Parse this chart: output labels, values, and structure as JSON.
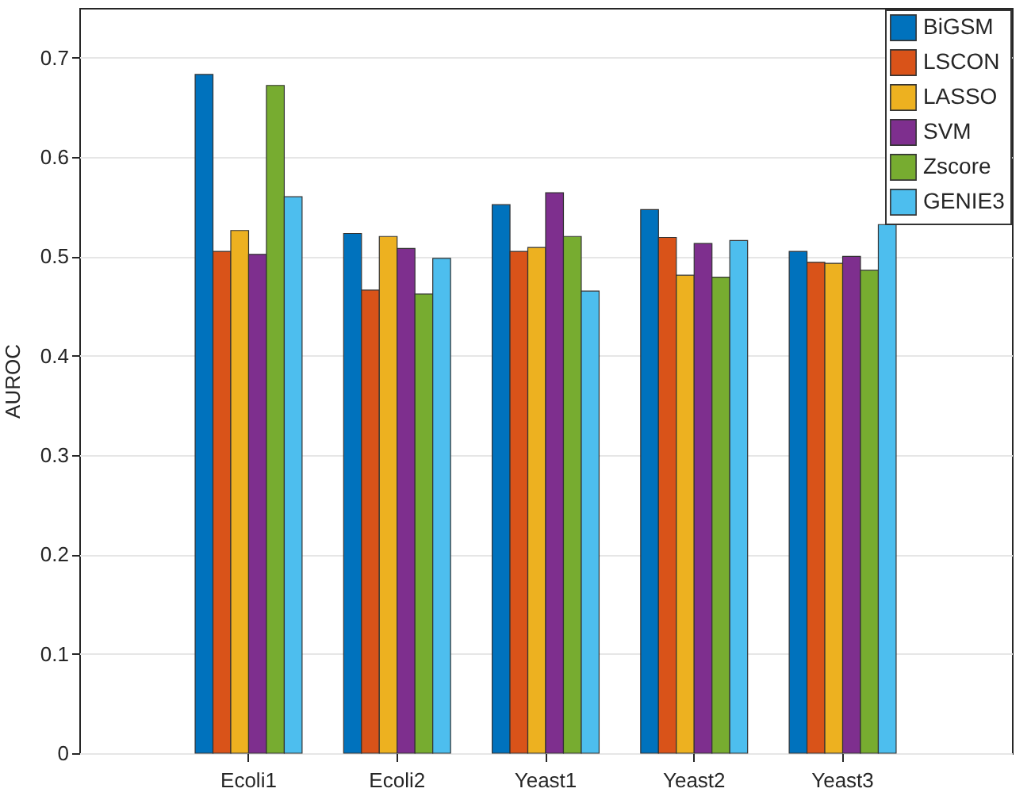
{
  "chart_data": {
    "type": "bar",
    "ylabel": "AUROC",
    "categories": [
      "Ecoli1",
      "Ecoli2",
      "Yeast1",
      "Yeast2",
      "Yeast3"
    ],
    "series": [
      {
        "name": "BiGSM",
        "color": "#0072bd",
        "values": [
          0.683,
          0.523,
          0.552,
          0.547,
          0.505
        ]
      },
      {
        "name": "LSCON",
        "color": "#d95319",
        "values": [
          0.505,
          0.466,
          0.505,
          0.519,
          0.494
        ]
      },
      {
        "name": "LASSO",
        "color": "#edb120",
        "values": [
          0.526,
          0.52,
          0.509,
          0.481,
          0.493
        ]
      },
      {
        "name": "SVM",
        "color": "#7e2f8e",
        "values": [
          0.502,
          0.508,
          0.564,
          0.513,
          0.5
        ]
      },
      {
        "name": "Zscore",
        "color": "#77ac30",
        "values": [
          0.672,
          0.462,
          0.52,
          0.479,
          0.486
        ]
      },
      {
        "name": "GENIE3",
        "color": "#4dbeee",
        "values": [
          0.56,
          0.498,
          0.465,
          0.516,
          0.532
        ]
      }
    ],
    "ylim": [
      0,
      0.75
    ],
    "yticks": [
      0,
      0.1,
      0.2,
      0.3,
      0.4,
      0.5,
      0.6,
      0.7
    ],
    "grid": "y",
    "legend": "top right"
  }
}
